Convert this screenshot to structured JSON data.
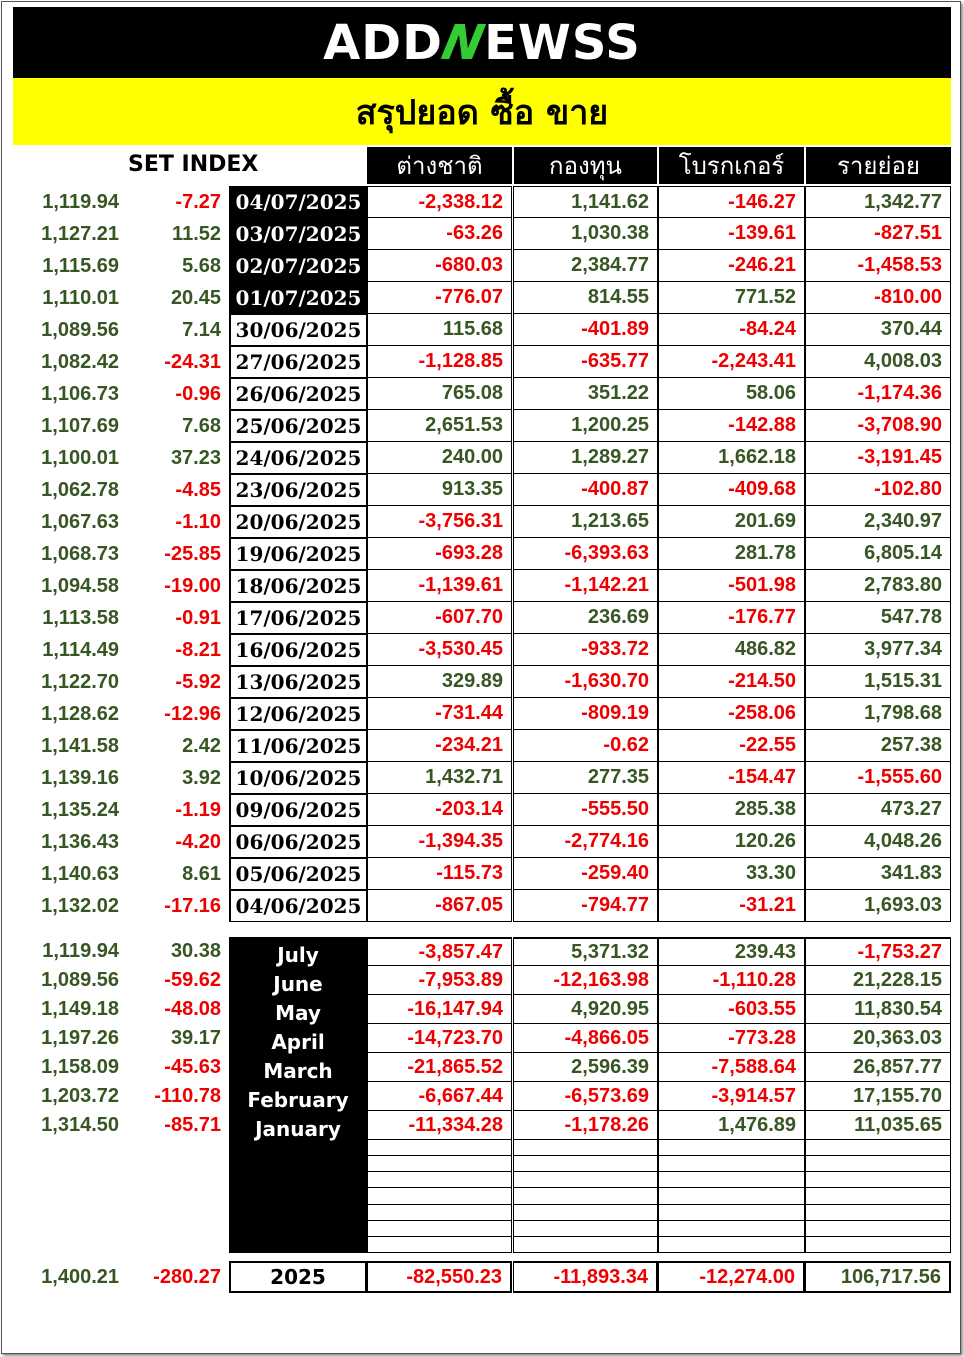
{
  "brand": {
    "pre": "ADD",
    "n": "N",
    "post": "EWSS"
  },
  "banner_title": "สรุปยอด ซื้อ ขาย",
  "set_index_label": "SET INDEX",
  "columns": [
    "ต่างชาติ",
    "กองทุน",
    "โบรกเกอร์",
    "รายย่อย"
  ],
  "daily": [
    {
      "index": "1,119.94",
      "change": "-7.27",
      "date": "04/07/2025",
      "foreign": "-2,338.12",
      "fund": "1,141.62",
      "broker": "-146.27",
      "retail": "1,342.77"
    },
    {
      "index": "1,127.21",
      "change": "11.52",
      "date": "03/07/2025",
      "foreign": "-63.26",
      "fund": "1,030.38",
      "broker": "-139.61",
      "retail": "-827.51"
    },
    {
      "index": "1,115.69",
      "change": "5.68",
      "date": "02/07/2025",
      "foreign": "-680.03",
      "fund": "2,384.77",
      "broker": "-246.21",
      "retail": "-1,458.53"
    },
    {
      "index": "1,110.01",
      "change": "20.45",
      "date": "01/07/2025",
      "foreign": "-776.07",
      "fund": "814.55",
      "broker": "771.52",
      "retail": "-810.00"
    },
    {
      "index": "1,089.56",
      "change": "7.14",
      "date": "30/06/2025",
      "foreign": "115.68",
      "fund": "-401.89",
      "broker": "-84.24",
      "retail": "370.44"
    },
    {
      "index": "1,082.42",
      "change": "-24.31",
      "date": "27/06/2025",
      "foreign": "-1,128.85",
      "fund": "-635.77",
      "broker": "-2,243.41",
      "retail": "4,008.03"
    },
    {
      "index": "1,106.73",
      "change": "-0.96",
      "date": "26/06/2025",
      "foreign": "765.08",
      "fund": "351.22",
      "broker": "58.06",
      "retail": "-1,174.36"
    },
    {
      "index": "1,107.69",
      "change": "7.68",
      "date": "25/06/2025",
      "foreign": "2,651.53",
      "fund": "1,200.25",
      "broker": "-142.88",
      "retail": "-3,708.90"
    },
    {
      "index": "1,100.01",
      "change": "37.23",
      "date": "24/06/2025",
      "foreign": "240.00",
      "fund": "1,289.27",
      "broker": "1,662.18",
      "retail": "-3,191.45"
    },
    {
      "index": "1,062.78",
      "change": "-4.85",
      "date": "23/06/2025",
      "foreign": "913.35",
      "fund": "-400.87",
      "broker": "-409.68",
      "retail": "-102.80"
    },
    {
      "index": "1,067.63",
      "change": "-1.10",
      "date": "20/06/2025",
      "foreign": "-3,756.31",
      "fund": "1,213.65",
      "broker": "201.69",
      "retail": "2,340.97"
    },
    {
      "index": "1,068.73",
      "change": "-25.85",
      "date": "19/06/2025",
      "foreign": "-693.28",
      "fund": "-6,393.63",
      "broker": "281.78",
      "retail": "6,805.14"
    },
    {
      "index": "1,094.58",
      "change": "-19.00",
      "date": "18/06/2025",
      "foreign": "-1,139.61",
      "fund": "-1,142.21",
      "broker": "-501.98",
      "retail": "2,783.80"
    },
    {
      "index": "1,113.58",
      "change": "-0.91",
      "date": "17/06/2025",
      "foreign": "-607.70",
      "fund": "236.69",
      "broker": "-176.77",
      "retail": "547.78"
    },
    {
      "index": "1,114.49",
      "change": "-8.21",
      "date": "16/06/2025",
      "foreign": "-3,530.45",
      "fund": "-933.72",
      "broker": "486.82",
      "retail": "3,977.34"
    },
    {
      "index": "1,122.70",
      "change": "-5.92",
      "date": "13/06/2025",
      "foreign": "329.89",
      "fund": "-1,630.70",
      "broker": "-214.50",
      "retail": "1,515.31"
    },
    {
      "index": "1,128.62",
      "change": "-12.96",
      "date": "12/06/2025",
      "foreign": "-731.44",
      "fund": "-809.19",
      "broker": "-258.06",
      "retail": "1,798.68"
    },
    {
      "index": "1,141.58",
      "change": "2.42",
      "date": "11/06/2025",
      "foreign": "-234.21",
      "fund": "-0.62",
      "broker": "-22.55",
      "retail": "257.38"
    },
    {
      "index": "1,139.16",
      "change": "3.92",
      "date": "10/06/2025",
      "foreign": "1,432.71",
      "fund": "277.35",
      "broker": "-154.47",
      "retail": "-1,555.60"
    },
    {
      "index": "1,135.24",
      "change": "-1.19",
      "date": "09/06/2025",
      "foreign": "-203.14",
      "fund": "-555.50",
      "broker": "285.38",
      "retail": "473.27"
    },
    {
      "index": "1,136.43",
      "change": "-4.20",
      "date": "06/06/2025",
      "foreign": "-1,394.35",
      "fund": "-2,774.16",
      "broker": "120.26",
      "retail": "4,048.26"
    },
    {
      "index": "1,140.63",
      "change": "8.61",
      "date": "05/06/2025",
      "foreign": "-115.73",
      "fund": "-259.40",
      "broker": "33.30",
      "retail": "341.83"
    },
    {
      "index": "1,132.02",
      "change": "-17.16",
      "date": "04/06/2025",
      "foreign": "-867.05",
      "fund": "-794.77",
      "broker": "-31.21",
      "retail": "1,693.03"
    }
  ],
  "monthly": [
    {
      "index": "1,119.94",
      "change": "30.38",
      "month": "July",
      "foreign": "-3,857.47",
      "fund": "5,371.32",
      "broker": "239.43",
      "retail": "-1,753.27"
    },
    {
      "index": "1,089.56",
      "change": "-59.62",
      "month": "June",
      "foreign": "-7,953.89",
      "fund": "-12,163.98",
      "broker": "-1,110.28",
      "retail": "21,228.15"
    },
    {
      "index": "1,149.18",
      "change": "-48.08",
      "month": "May",
      "foreign": "-16,147.94",
      "fund": "4,920.95",
      "broker": "-603.55",
      "retail": "11,830.54"
    },
    {
      "index": "1,197.26",
      "change": "39.17",
      "month": "April",
      "foreign": "-14,723.70",
      "fund": "-4,866.05",
      "broker": "-773.28",
      "retail": "20,363.03"
    },
    {
      "index": "1,158.09",
      "change": "-45.63",
      "month": "March",
      "foreign": "-21,865.52",
      "fund": "2,596.39",
      "broker": "-7,588.64",
      "retail": "26,857.77"
    },
    {
      "index": "1,203.72",
      "change": "-110.78",
      "month": "February",
      "foreign": "-6,667.44",
      "fund": "-6,573.69",
      "broker": "-3,914.57",
      "retail": "17,155.70"
    },
    {
      "index": "1,314.50",
      "change": "-85.71",
      "month": "January",
      "foreign": "-11,334.28",
      "fund": "-1,178.26",
      "broker": "1,476.89",
      "retail": "11,035.65"
    }
  ],
  "yearly": {
    "index": "1,400.21",
    "change": "-280.27",
    "year": "2025",
    "foreign": "-82,550.23",
    "fund": "-11,893.34",
    "broker": "-12,274.00",
    "retail": "106,717.56"
  },
  "colors": {
    "positive": "#375623",
    "negative": "#e00000",
    "banner": "#ffff00",
    "header_bg": "#000000"
  }
}
